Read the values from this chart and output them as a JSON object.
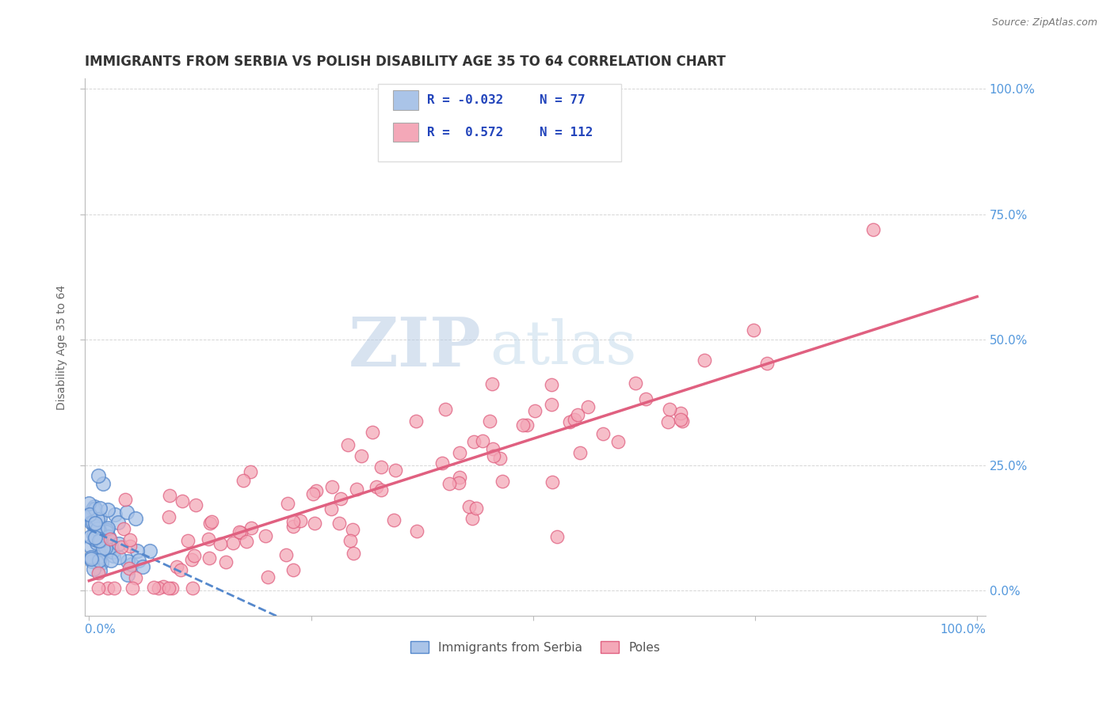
{
  "title": "IMMIGRANTS FROM SERBIA VS POLISH DISABILITY AGE 35 TO 64 CORRELATION CHART",
  "source": "Source: ZipAtlas.com",
  "ylabel": "Disability Age 35 to 64",
  "legend_series": [
    {
      "label": "Immigrants from Serbia",
      "R": -0.032,
      "N": 77,
      "fill": "#aac4e8",
      "edge": "#5588cc"
    },
    {
      "label": "Poles",
      "R": 0.572,
      "N": 112,
      "fill": "#f4a8b8",
      "edge": "#e06080"
    }
  ],
  "watermark_zip": "ZIP",
  "watermark_atlas": "atlas",
  "title_fontsize": 12,
  "background_color": "#ffffff",
  "grid_color": "#cccccc",
  "axis_label_color": "#5599dd",
  "right_yticks_vals": [
    0.0,
    0.25,
    0.5,
    0.75,
    1.0
  ],
  "right_yticks_labels": [
    "0.0%",
    "25.0%",
    "50.0%",
    "75.0%",
    "100.0%"
  ]
}
